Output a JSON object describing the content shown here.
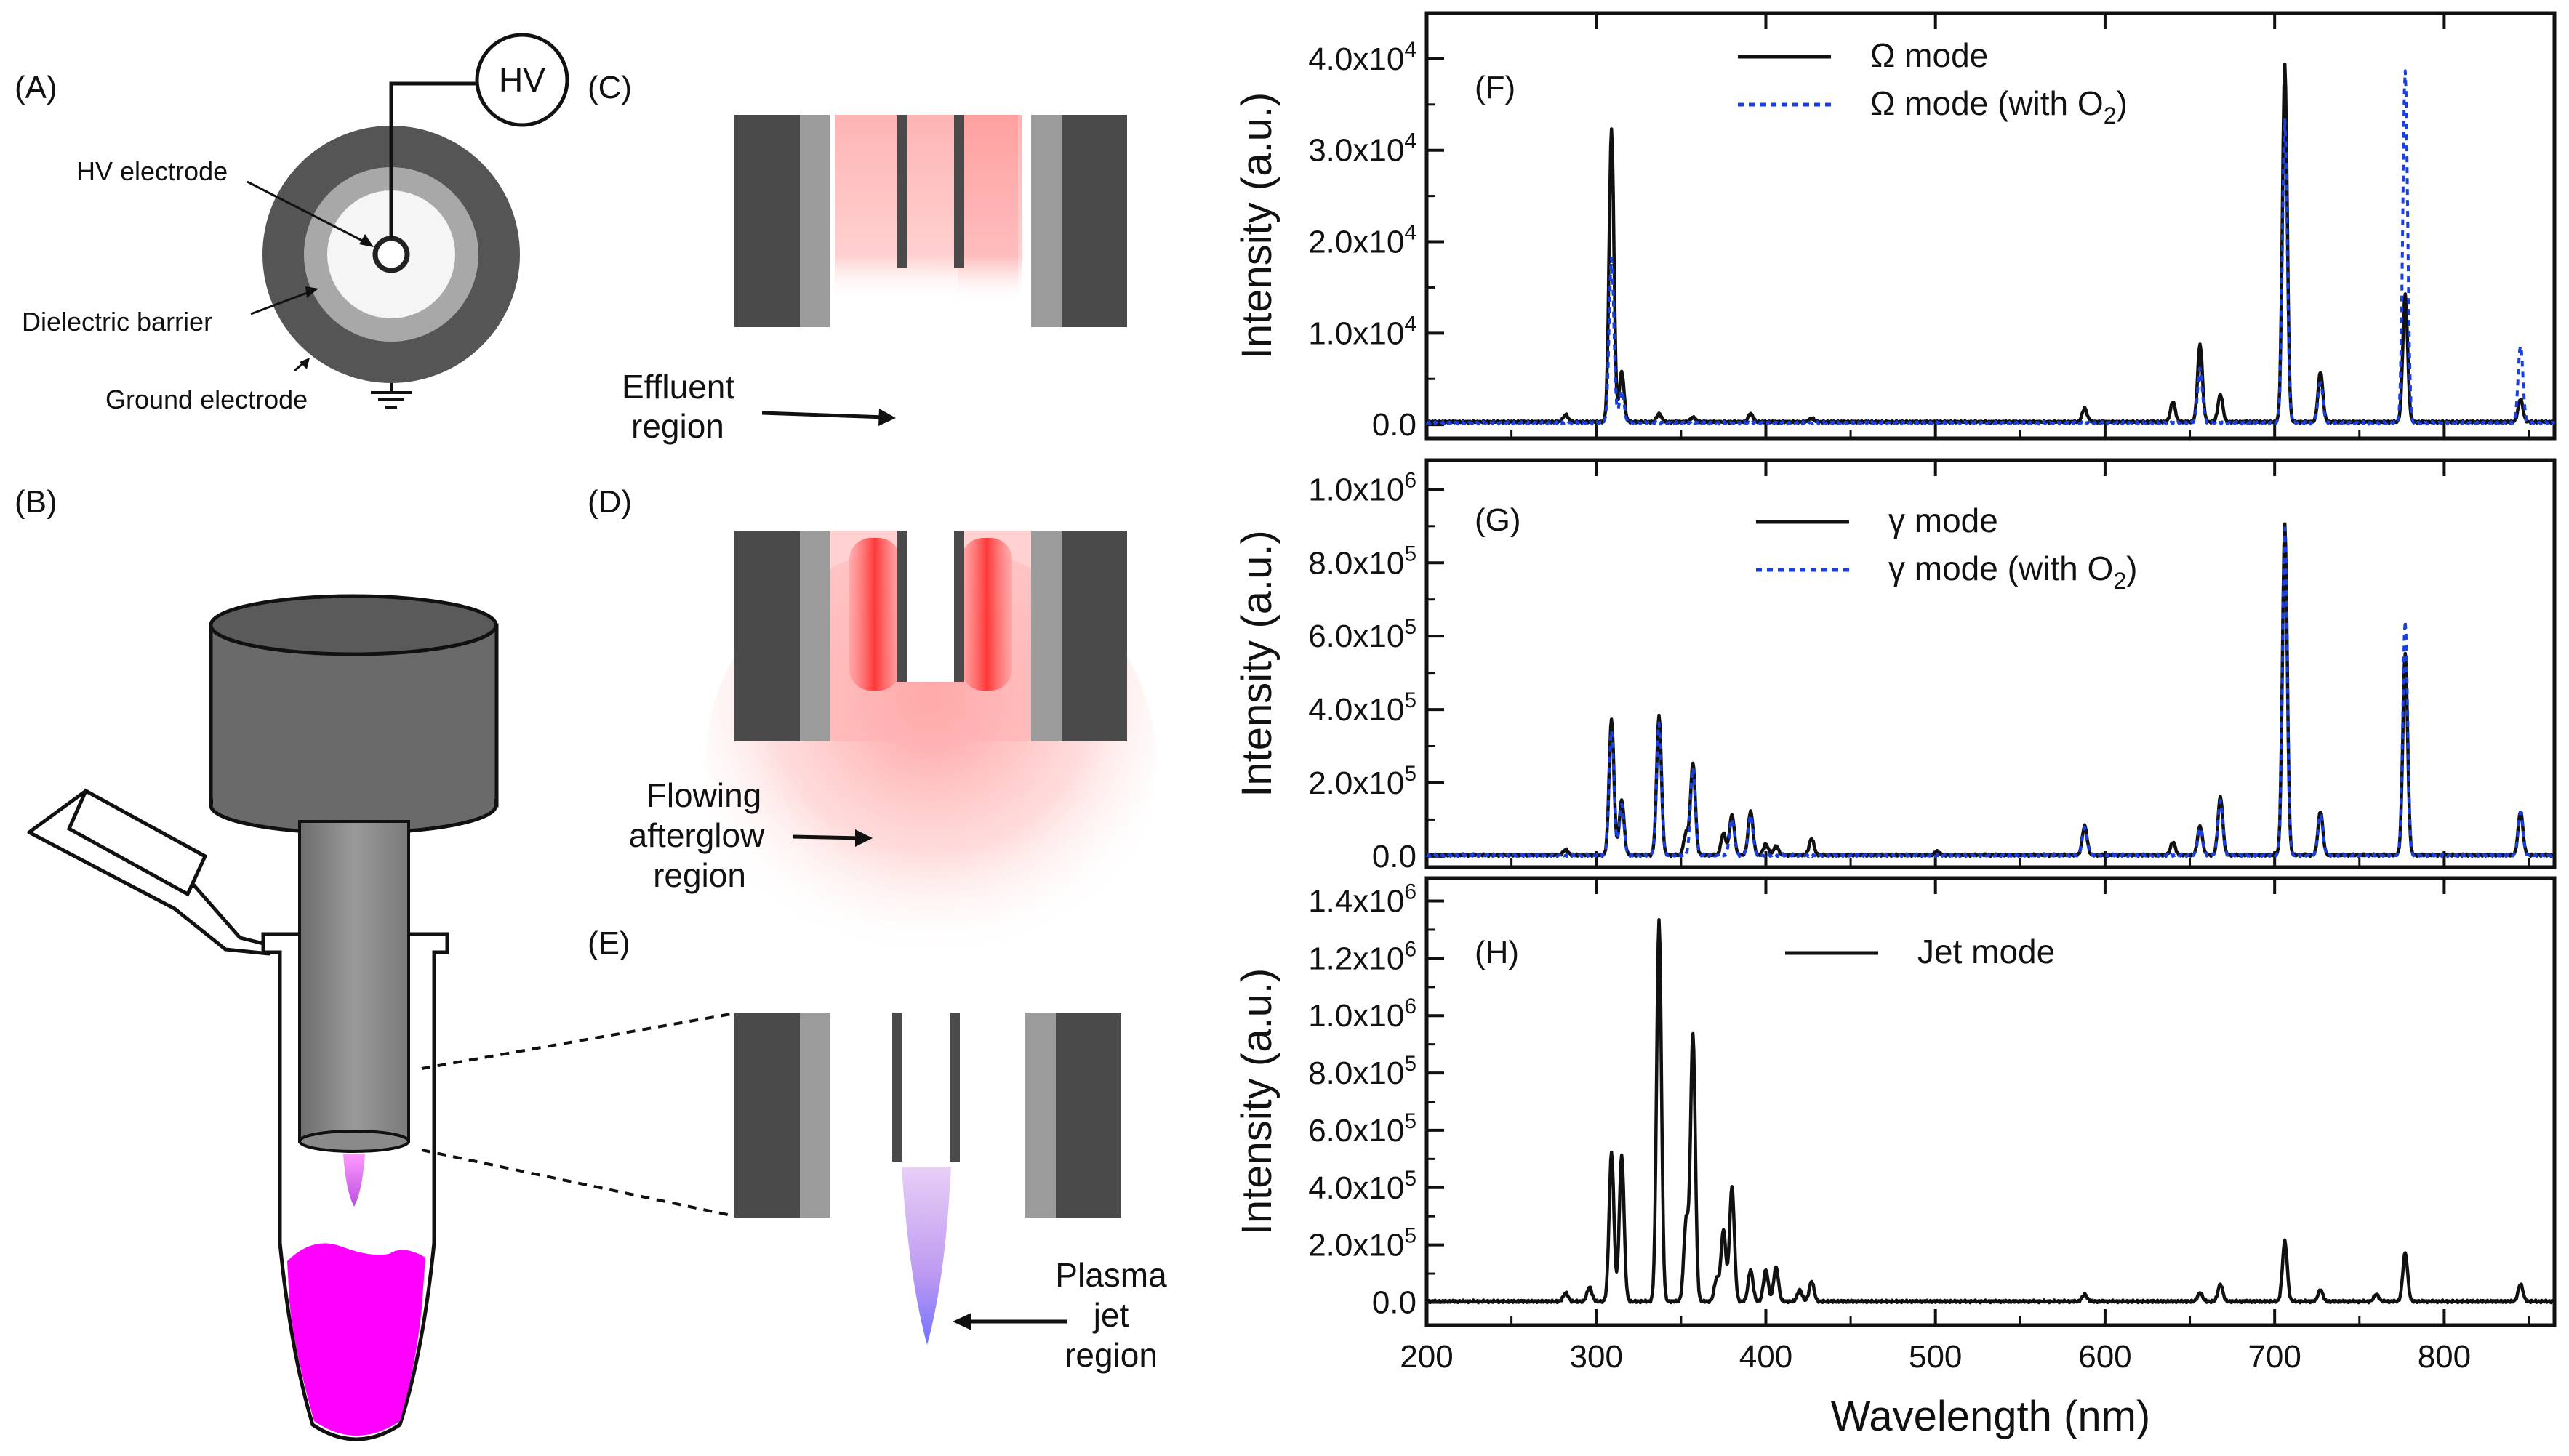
{
  "panels": {
    "A": "(A)",
    "B": "(B)",
    "C": "(C)",
    "D": "(D)",
    "E": "(E)",
    "F": "(F)",
    "G": "(G)",
    "H": "(H)"
  },
  "labels": {
    "hv": "HV",
    "hv_electrode": "HV electrode",
    "dielectric": "Dielectric barrier",
    "ground": "Ground electrode",
    "effluent_1": "Effluent",
    "effluent_2": "region",
    "afterglow_1": "Flowing",
    "afterglow_2": "afterglow",
    "afterglow_3": "region",
    "jet_1": "Plasma",
    "jet_2": "jet",
    "jet_3": "region"
  },
  "colors": {
    "dark_gray": "#4a4a4a",
    "light_gray": "#9b9b9b",
    "pink_glow": "#ff6b6b",
    "magenta": "#ff00ff",
    "blue_dash": "#1a3fe0"
  },
  "chart_data": [
    {
      "type": "line",
      "panel": "(F)",
      "xlabel": "",
      "ylabel": "Intensity (a.u.)",
      "xlim": [
        200,
        865
      ],
      "ylim": [
        -1500,
        45000
      ],
      "yticks": [
        0,
        10000,
        20000,
        30000,
        40000
      ],
      "ytick_labels": [
        "0.0",
        "1.0x10^4",
        "2.0x10^4",
        "3.0x10^4",
        "4.0x10^4"
      ],
      "series": [
        {
          "name": "Ω mode",
          "legend": "Ω mode",
          "style": "solid",
          "color": "#111111",
          "baseline": 300,
          "peaks": [
            [
              282,
              800
            ],
            [
              309,
              32000
            ],
            [
              315,
              5500
            ],
            [
              337,
              900
            ],
            [
              357,
              500
            ],
            [
              391,
              900
            ],
            [
              427,
              400
            ],
            [
              588,
              1500
            ],
            [
              640,
              2200
            ],
            [
              656,
              8500
            ],
            [
              668,
              3000
            ],
            [
              706,
              39000
            ],
            [
              727,
              5500
            ],
            [
              777,
              14000
            ],
            [
              845,
              2500
            ]
          ]
        },
        {
          "name": "Ω mode (with O2)",
          "legend": "Ω mode (with O₂)",
          "style": "dashed",
          "color": "#1a3fe0",
          "baseline": 200,
          "peaks": [
            [
              309,
              18000
            ],
            [
              315,
              3500
            ],
            [
              656,
              6000
            ],
            [
              706,
              33000
            ],
            [
              727,
              4500
            ],
            [
              777,
              38500
            ],
            [
              845,
              8500
            ]
          ]
        }
      ]
    },
    {
      "type": "line",
      "panel": "(G)",
      "xlabel": "",
      "ylabel": "Intensity (a.u.)",
      "xlim": [
        200,
        865
      ],
      "ylim": [
        -30000,
        1080000
      ],
      "yticks": [
        0,
        200000,
        400000,
        600000,
        800000,
        1000000
      ],
      "ytick_labels": [
        "0.0",
        "2.0x10^5",
        "4.0x10^5",
        "6.0x10^5",
        "8.0x10^5",
        "1.0x10^6"
      ],
      "series": [
        {
          "name": "γ mode",
          "legend": "γ mode",
          "style": "solid",
          "color": "#111111",
          "baseline": 3000,
          "peaks": [
            [
              282,
              15000
            ],
            [
              309,
              370000
            ],
            [
              315,
              150000
            ],
            [
              337,
              380000
            ],
            [
              353,
              60000
            ],
            [
              357,
              250000
            ],
            [
              375,
              60000
            ],
            [
              380,
              110000
            ],
            [
              391,
              120000
            ],
            [
              400,
              30000
            ],
            [
              406,
              25000
            ],
            [
              427,
              45000
            ],
            [
              501,
              10000
            ],
            [
              588,
              80000
            ],
            [
              640,
              35000
            ],
            [
              656,
              80000
            ],
            [
              668,
              160000
            ],
            [
              706,
              900000
            ],
            [
              727,
              120000
            ],
            [
              777,
              550000
            ],
            [
              845,
              120000
            ]
          ]
        },
        {
          "name": "γ mode (with O2)",
          "legend": "γ mode (with O₂)",
          "style": "dashed",
          "color": "#1a3fe0",
          "baseline": 2000,
          "peaks": [
            [
              309,
              340000
            ],
            [
              315,
              140000
            ],
            [
              337,
              360000
            ],
            [
              357,
              240000
            ],
            [
              380,
              100000
            ],
            [
              391,
              110000
            ],
            [
              588,
              75000
            ],
            [
              656,
              75000
            ],
            [
              668,
              150000
            ],
            [
              706,
              890000
            ],
            [
              727,
              115000
            ],
            [
              777,
              640000
            ],
            [
              845,
              120000
            ]
          ]
        }
      ]
    },
    {
      "type": "line",
      "panel": "(H)",
      "xlabel": "Wavelength (nm)",
      "ylabel": "Intensity (a.u.)",
      "xlim": [
        200,
        865
      ],
      "ylim": [
        -80000,
        1480000
      ],
      "yticks": [
        0,
        200000,
        400000,
        600000,
        800000,
        1000000,
        1200000,
        1400000
      ],
      "ytick_labels": [
        "0.0",
        "2.0x10^5",
        "4.0x10^5",
        "6.0x10^5",
        "8.0x10^5",
        "1.0x10^6",
        "1.2x10^6",
        "1.4x10^6"
      ],
      "xticks": [
        200,
        300,
        400,
        500,
        600,
        700,
        800
      ],
      "xtick_labels": [
        "200",
        "300",
        "400",
        "500",
        "600",
        "700",
        "800"
      ],
      "series": [
        {
          "name": "Jet mode",
          "legend": "Jet mode",
          "style": "solid",
          "color": "#111111",
          "baseline": 3000,
          "peaks": [
            [
              282,
              30000
            ],
            [
              296,
              50000
            ],
            [
              309,
              520000
            ],
            [
              315,
              510000
            ],
            [
              337,
              1330000
            ],
            [
              353,
              280000
            ],
            [
              357,
              930000
            ],
            [
              371,
              80000
            ],
            [
              375,
              250000
            ],
            [
              380,
              400000
            ],
            [
              391,
              110000
            ],
            [
              400,
              110000
            ],
            [
              406,
              120000
            ],
            [
              420,
              40000
            ],
            [
              427,
              70000
            ],
            [
              588,
              25000
            ],
            [
              656,
              30000
            ],
            [
              668,
              60000
            ],
            [
              706,
              210000
            ],
            [
              727,
              40000
            ],
            [
              760,
              25000
            ],
            [
              777,
              170000
            ],
            [
              845,
              60000
            ]
          ]
        }
      ]
    }
  ]
}
